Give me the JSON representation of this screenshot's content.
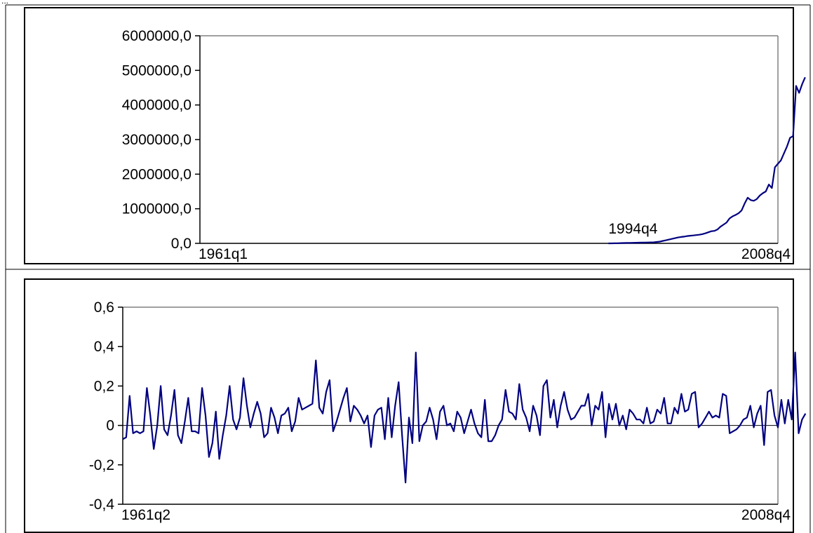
{
  "corner_mark": "...",
  "chart_data": [
    {
      "type": "line",
      "title": "",
      "xlabel": "",
      "ylabel": "",
      "ylim": [
        0,
        6000000
      ],
      "yticks": [
        0,
        1000000,
        2000000,
        3000000,
        4000000,
        5000000,
        6000000
      ],
      "ytick_labels": [
        "0,0",
        "1000000,0",
        "2000000,0",
        "3000000,0",
        "4000000,0",
        "5000000,0",
        "6000000,0"
      ],
      "x_labels": {
        "start": "1961q1",
        "end": "2008q4",
        "mid": "1994q4"
      },
      "colors": {
        "line": "#000080",
        "axis": "#000000",
        "frame": "#808080"
      },
      "series": [
        {
          "start_index": 135,
          "values": [
            0,
            1000,
            3000,
            5000,
            8000,
            10000,
            12000,
            14000,
            16000,
            18000,
            20000,
            22000,
            24000,
            26000,
            28000,
            30000,
            40000,
            50000,
            70000,
            90000,
            110000,
            130000,
            150000,
            170000,
            185000,
            195000,
            210000,
            220000,
            230000,
            240000,
            250000,
            265000,
            290000,
            320000,
            350000,
            360000,
            400000,
            480000,
            540000,
            600000,
            720000,
            780000,
            820000,
            870000,
            950000,
            1150000,
            1320000,
            1250000,
            1230000,
            1280000,
            1380000,
            1450000,
            1500000,
            1700000,
            1600000,
            2200000,
            2300000,
            2400000,
            2600000,
            2800000,
            3050000,
            3100000,
            4550000,
            4350000,
            4600000,
            4800000
          ]
        }
      ]
    },
    {
      "type": "line",
      "title": "",
      "xlabel": "",
      "ylabel": "",
      "ylim": [
        -0.4,
        0.6
      ],
      "yticks": [
        -0.4,
        -0.2,
        0,
        0.2,
        0.4,
        0.6
      ],
      "ytick_labels": [
        "-0,4",
        "-0,2",
        "0",
        "0,2",
        "0,4",
        "0,6"
      ],
      "x_labels": {
        "start": "1961q2",
        "end": "2008q4"
      },
      "colors": {
        "line": "#000080",
        "axis": "#000000",
        "frame": "#808080"
      },
      "series": [
        {
          "values": [
            -0.07,
            -0.06,
            0.15,
            -0.04,
            -0.03,
            -0.04,
            -0.03,
            0.19,
            0.05,
            -0.12,
            0.0,
            0.2,
            -0.02,
            -0.05,
            0.05,
            0.18,
            -0.05,
            -0.09,
            0.02,
            0.14,
            -0.03,
            -0.03,
            -0.04,
            0.19,
            0.05,
            -0.16,
            -0.09,
            0.07,
            -0.17,
            -0.05,
            0.05,
            0.2,
            0.03,
            -0.02,
            0.04,
            0.24,
            0.1,
            -0.01,
            0.06,
            0.12,
            0.06,
            -0.06,
            -0.04,
            0.09,
            0.04,
            -0.04,
            0.05,
            0.06,
            0.09,
            -0.03,
            0.02,
            0.14,
            0.08,
            0.09,
            0.1,
            0.11,
            0.33,
            0.09,
            0.06,
            0.17,
            0.23,
            -0.03,
            0.02,
            0.08,
            0.14,
            0.19,
            0.02,
            0.1,
            0.08,
            0.05,
            0.01,
            0.05,
            -0.11,
            0.05,
            0.08,
            0.09,
            -0.07,
            0.14,
            -0.06,
            0.1,
            0.22,
            -0.05,
            -0.29,
            0.04,
            -0.09,
            0.37,
            -0.08,
            0.0,
            0.02,
            0.09,
            0.03,
            -0.07,
            0.07,
            0.1,
            0.0,
            0.01,
            -0.03,
            0.07,
            0.04,
            -0.04,
            0.02,
            0.08,
            0.01,
            -0.04,
            -0.06,
            0.13,
            -0.08,
            -0.08,
            -0.05,
            0.0,
            0.03,
            0.18,
            0.07,
            0.06,
            0.03,
            0.21,
            0.08,
            0.04,
            -0.03,
            0.1,
            0.05,
            -0.05,
            0.2,
            0.23,
            0.04,
            0.13,
            -0.01,
            0.1,
            0.17,
            0.08,
            0.03,
            0.04,
            0.07,
            0.1,
            0.1,
            0.16,
            0.0,
            0.1,
            0.08,
            0.17,
            -0.06,
            0.11,
            0.03,
            0.11,
            0.0,
            0.05,
            -0.02,
            0.08,
            0.06,
            0.03,
            0.03,
            0.01,
            0.09,
            0.01,
            0.02,
            0.08,
            0.06,
            0.14,
            0.01,
            0.01,
            0.09,
            0.06,
            0.16,
            0.07,
            0.08,
            0.16,
            0.17,
            -0.01,
            0.01,
            0.04,
            0.07,
            0.04,
            0.05,
            0.04,
            0.16,
            0.15,
            -0.04,
            -0.03,
            -0.02,
            0.0,
            0.03,
            0.04,
            0.1,
            -0.01,
            0.06,
            0.1,
            -0.1,
            0.17,
            0.18,
            0.05,
            -0.01,
            0.13,
            0.01,
            0.13,
            0.03,
            0.37,
            -0.04,
            0.03,
            0.06
          ]
        }
      ]
    }
  ]
}
